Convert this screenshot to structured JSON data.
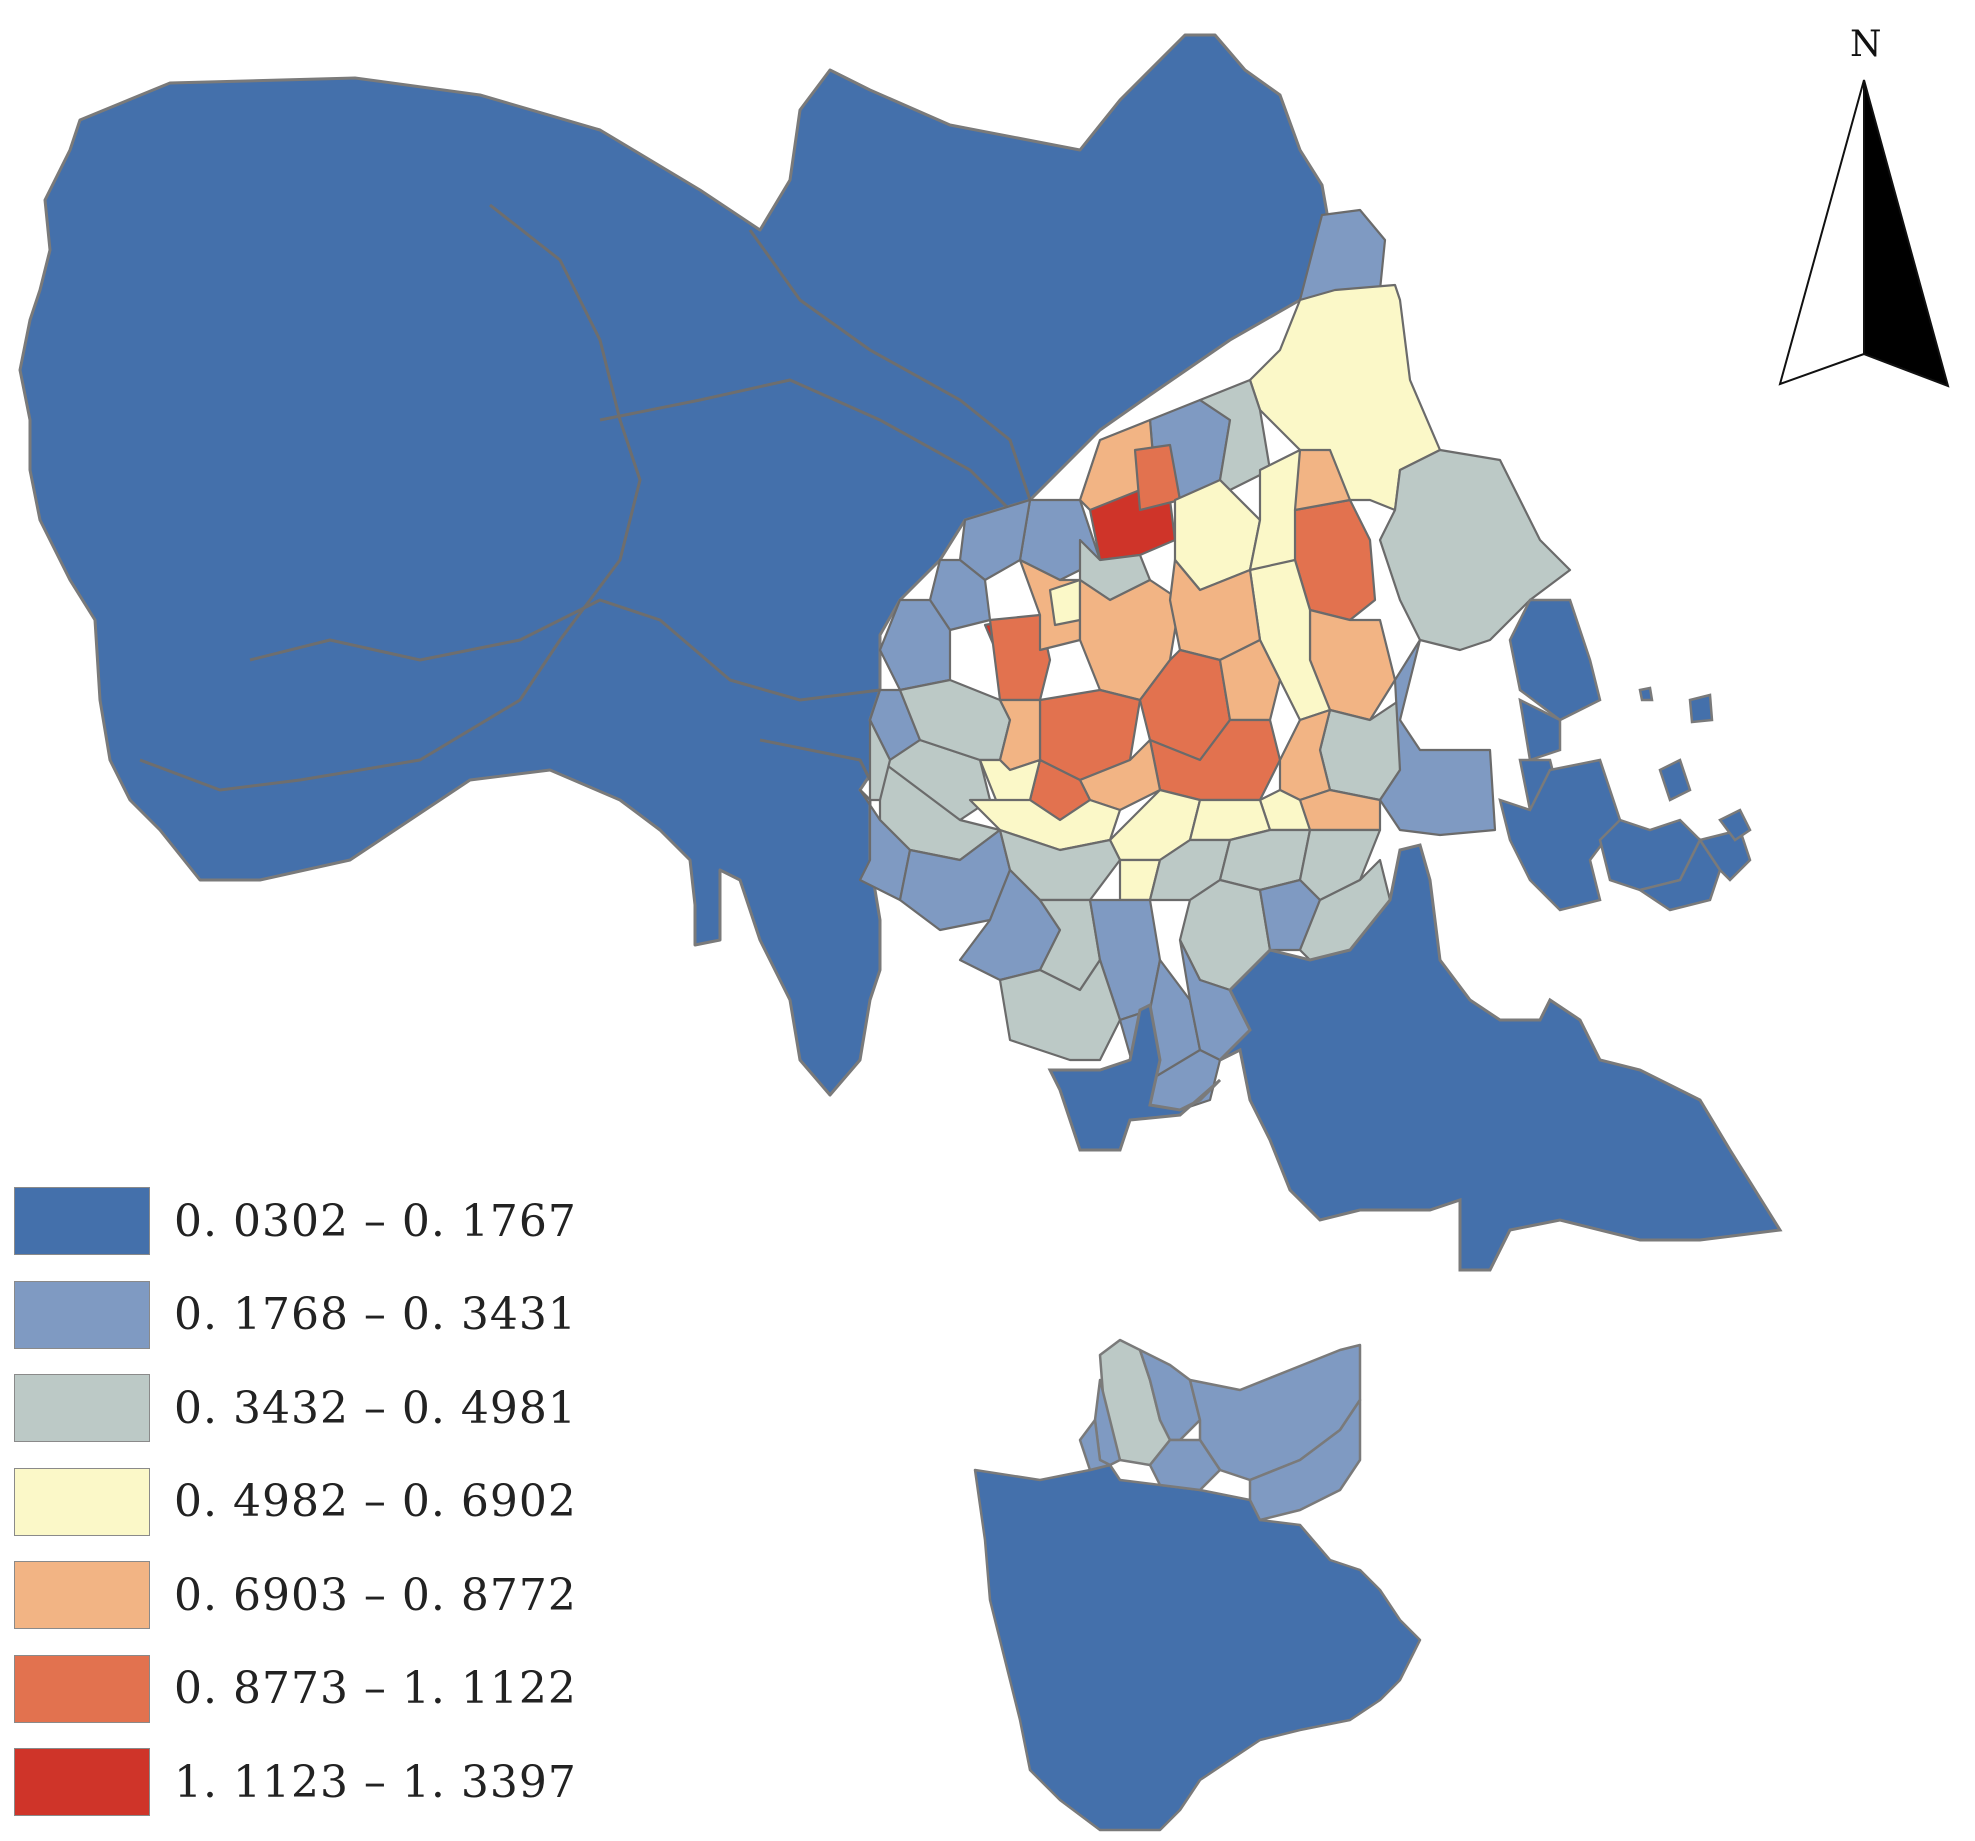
{
  "north_arrow": {
    "label": "N"
  },
  "legend": {
    "items": [
      {
        "label": "0. 0302 – 0. 1767",
        "color": "#4470ab"
      },
      {
        "label": "0. 1768 – 0. 3431",
        "color": "#7f9ac2"
      },
      {
        "label": "0. 3432 – 0. 4981",
        "color": "#bcc9c6"
      },
      {
        "label": "0. 4982 – 0. 6902",
        "color": "#fbf8c8"
      },
      {
        "label": "0. 6903 – 0. 8772",
        "color": "#f2b484"
      },
      {
        "label": "0. 8773 – 1. 1122",
        "color": "#e2724f"
      },
      {
        "label": "1. 1123 – 1. 3397",
        "color": "#cf3429"
      }
    ]
  },
  "colors": {
    "boundary": "#6b6b6b",
    "outer_boundary": "#7a7a7a",
    "background": "#ffffff"
  }
}
